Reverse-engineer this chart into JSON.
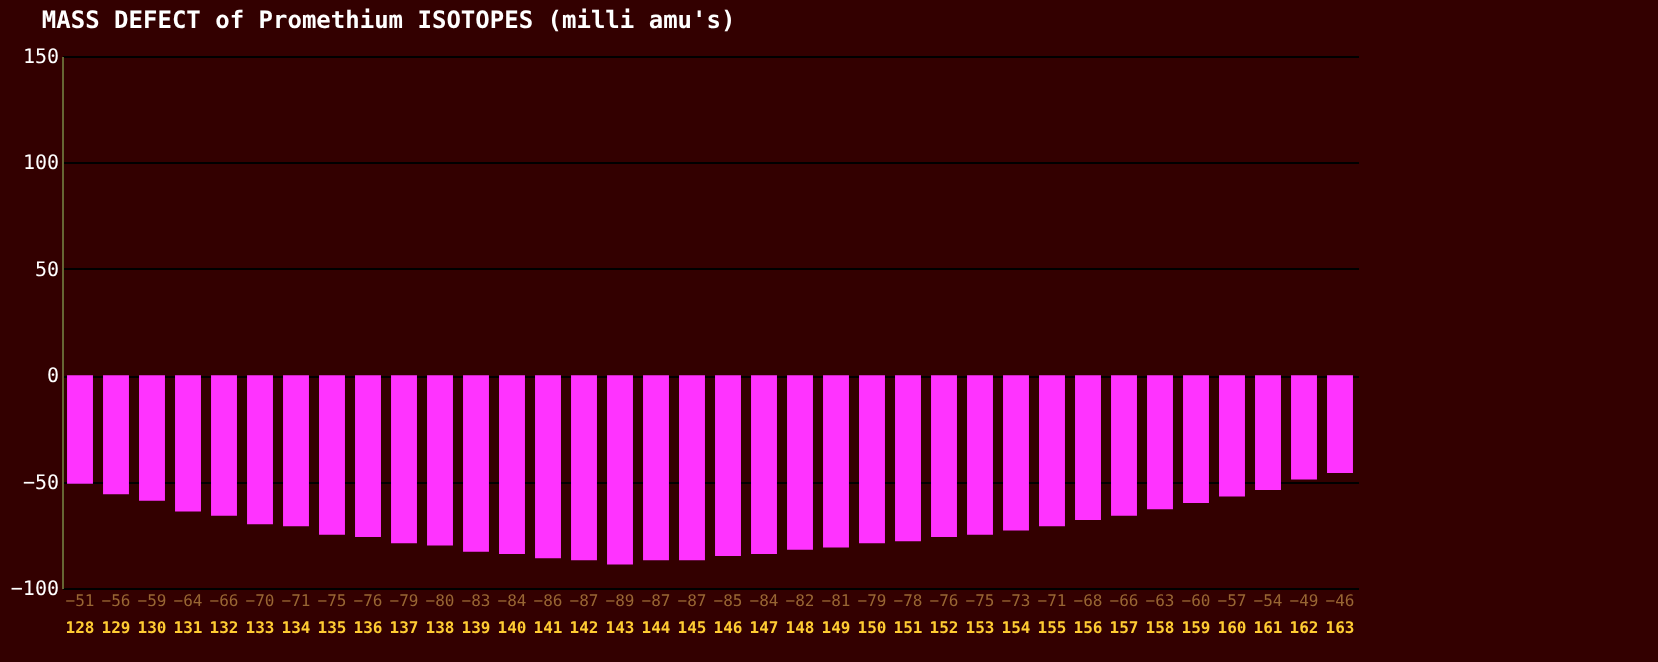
{
  "chart_data": {
    "type": "bar",
    "title": "MASS DEFECT of Promethium ISOTOPES (milli amu's)",
    "categories": [
      "128",
      "129",
      "130",
      "131",
      "132",
      "133",
      "134",
      "135",
      "136",
      "137",
      "138",
      "139",
      "140",
      "141",
      "142",
      "143",
      "144",
      "145",
      "146",
      "147",
      "148",
      "149",
      "150",
      "151",
      "152",
      "153",
      "154",
      "155",
      "156",
      "157",
      "158",
      "159",
      "160",
      "161",
      "162",
      "163"
    ],
    "values": [
      -51,
      -56,
      -59,
      -64,
      -66,
      -70,
      -71,
      -75,
      -76,
      -79,
      -80,
      -83,
      -84,
      -86,
      -87,
      -89,
      -87,
      -87,
      -85,
      -84,
      -82,
      -81,
      -79,
      -78,
      -76,
      -75,
      -73,
      -71,
      -68,
      -66,
      -63,
      -60,
      -57,
      -54,
      -49,
      -46
    ],
    "color": "#ff33ff",
    "ylim": [
      -100,
      150
    ],
    "yticks": [
      -100,
      -50,
      0,
      50,
      100,
      150
    ],
    "grid": "y",
    "data_labels": true
  }
}
